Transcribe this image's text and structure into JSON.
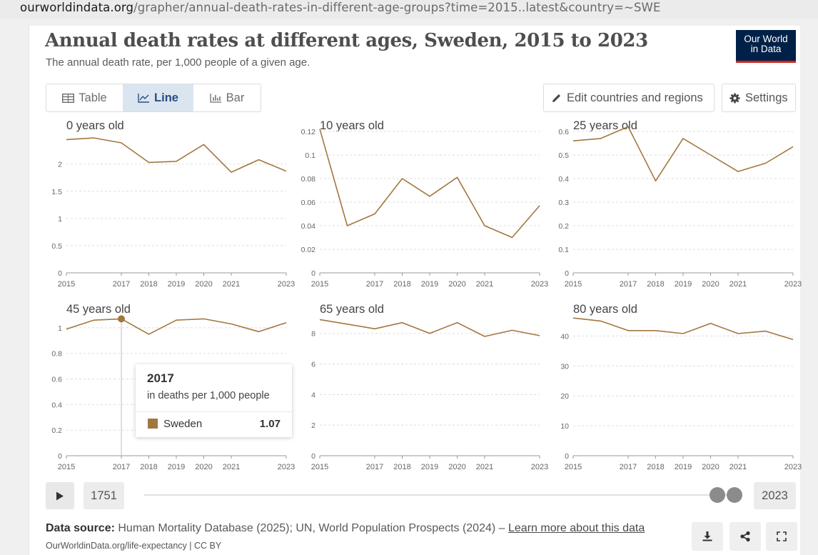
{
  "url": {
    "domain": "ourworldindata.org",
    "path": "/grapher/annual-death-rates-in-different-age-groups?time=2015..latest&country=~SWE"
  },
  "title": "Annual death rates at different ages, Sweden, 2015 to 2023",
  "subtitle": "The annual death rate, per 1,000 people of a given age.",
  "logo": {
    "line1": "Our World",
    "line2": "in Data"
  },
  "tabs": [
    {
      "label": "Table"
    },
    {
      "label": "Line"
    },
    {
      "label": "Bar"
    }
  ],
  "toolbar": {
    "edit_label": "Edit countries and regions",
    "settings_label": "Settings"
  },
  "colors": {
    "series": "#a2773f",
    "accent": "#264d80"
  },
  "chart_data": [
    {
      "type": "line",
      "title": "0 years old",
      "x": [
        2015,
        2016,
        2017,
        2018,
        2019,
        2020,
        2021,
        2022,
        2023
      ],
      "series": [
        {
          "name": "Sweden",
          "values": [
            2.45,
            2.48,
            2.39,
            2.03,
            2.05,
            2.36,
            1.85,
            2.08,
            1.87
          ]
        }
      ],
      "ylim": [
        0,
        2.6
      ],
      "yticks": [
        0,
        0.5,
        1,
        1.5,
        2
      ],
      "yticklabels": [
        "0",
        "0.5",
        "1",
        "1.5",
        "2"
      ],
      "xticks": [
        2015,
        2017,
        2018,
        2019,
        2020,
        2021,
        2023
      ],
      "xticklabels": [
        "2015",
        "2017",
        "2018",
        "2019",
        "2020",
        "2021",
        "2023"
      ]
    },
    {
      "type": "line",
      "title": "10 years old",
      "x": [
        2015,
        2016,
        2017,
        2018,
        2019,
        2020,
        2021,
        2022,
        2023
      ],
      "series": [
        {
          "name": "Sweden",
          "values": [
            0.122,
            0.04,
            0.05,
            0.08,
            0.065,
            0.081,
            0.04,
            0.03,
            0.057
          ]
        }
      ],
      "ylim": [
        0,
        0.12
      ],
      "yticks": [
        0,
        0.02,
        0.04,
        0.06,
        0.08,
        0.1,
        0.12
      ],
      "yticklabels": [
        "0",
        "0.02",
        "0.04",
        "0.06",
        "0.08",
        "0.1",
        "0.12"
      ],
      "xticks": [
        2015,
        2017,
        2018,
        2019,
        2020,
        2021,
        2023
      ],
      "xticklabels": [
        "2015",
        "2017",
        "2018",
        "2019",
        "2020",
        "2021",
        "2023"
      ]
    },
    {
      "type": "line",
      "title": "25 years old",
      "x": [
        2015,
        2016,
        2017,
        2018,
        2019,
        2020,
        2021,
        2022,
        2023
      ],
      "series": [
        {
          "name": "Sweden",
          "values": [
            0.56,
            0.57,
            0.62,
            0.39,
            0.57,
            0.5,
            0.43,
            0.465,
            0.535
          ]
        }
      ],
      "ylim": [
        0,
        0.6
      ],
      "yticks": [
        0,
        0.1,
        0.2,
        0.3,
        0.4,
        0.5,
        0.6
      ],
      "yticklabels": [
        "0",
        "0.1",
        "0.2",
        "0.3",
        "0.4",
        "0.5",
        "0.6"
      ],
      "xticks": [
        2015,
        2017,
        2018,
        2019,
        2020,
        2021,
        2023
      ],
      "xticklabels": [
        "2015",
        "2017",
        "2018",
        "2019",
        "2020",
        "2021",
        "2023"
      ]
    },
    {
      "type": "line",
      "title": "45 years old",
      "x": [
        2015,
        2016,
        2017,
        2018,
        2019,
        2020,
        2021,
        2022,
        2023
      ],
      "series": [
        {
          "name": "Sweden",
          "values": [
            0.99,
            1.06,
            1.07,
            0.95,
            1.06,
            1.07,
            1.03,
            0.97,
            1.04
          ]
        }
      ],
      "ylim": [
        0,
        1.1
      ],
      "yticks": [
        0,
        0.2,
        0.4,
        0.6,
        0.8,
        1
      ],
      "yticklabels": [
        "0",
        "0.2",
        "0.4",
        "0.6",
        "0.8",
        "1"
      ],
      "xticks": [
        2015,
        2017,
        2018,
        2019,
        2020,
        2021,
        2023
      ],
      "xticklabels": [
        "2015",
        "2017",
        "2018",
        "2019",
        "2020",
        "2021",
        "2023"
      ],
      "highlight": {
        "x": 2017,
        "value": 1.07
      }
    },
    {
      "type": "line",
      "title": "65 years old",
      "x": [
        2015,
        2016,
        2017,
        2018,
        2019,
        2020,
        2021,
        2022,
        2023
      ],
      "series": [
        {
          "name": "Sweden",
          "values": [
            8.9,
            8.6,
            8.3,
            8.7,
            8.0,
            8.7,
            7.8,
            8.2,
            7.85
          ]
        }
      ],
      "ylim": [
        0,
        9.2
      ],
      "yticks": [
        0,
        2,
        4,
        6,
        8
      ],
      "yticklabels": [
        "0",
        "2",
        "4",
        "6",
        "8"
      ],
      "xticks": [
        2015,
        2017,
        2018,
        2019,
        2020,
        2021,
        2023
      ],
      "xticklabels": [
        "2015",
        "2017",
        "2018",
        "2019",
        "2020",
        "2021",
        "2023"
      ]
    },
    {
      "type": "line",
      "title": "80 years old",
      "x": [
        2015,
        2016,
        2017,
        2018,
        2019,
        2020,
        2021,
        2022,
        2023
      ],
      "series": [
        {
          "name": "Sweden",
          "values": [
            46.0,
            45.0,
            41.8,
            41.8,
            40.8,
            44.2,
            40.8,
            41.6,
            38.8
          ]
        }
      ],
      "ylim": [
        0,
        47
      ],
      "yticks": [
        0,
        10,
        20,
        30,
        40
      ],
      "yticklabels": [
        "0",
        "10",
        "20",
        "30",
        "40"
      ],
      "xticks": [
        2015,
        2017,
        2018,
        2019,
        2020,
        2021,
        2023
      ],
      "xticklabels": [
        "2015",
        "2017",
        "2018",
        "2019",
        "2020",
        "2021",
        "2023"
      ]
    }
  ],
  "tooltip": {
    "year": "2017",
    "unit": "in deaths per 1,000 people",
    "entity": "Sweden",
    "value": "1.07"
  },
  "timeline": {
    "start_year": "1751",
    "end_year": "2023"
  },
  "footer": {
    "source_label": "Data source:",
    "source_text": " Human Mortality Database (2025); UN, World Population Prospects (2024) – ",
    "source_link": "Learn more about this data",
    "citation": "OurWorldinData.org/life-expectancy | CC BY"
  }
}
